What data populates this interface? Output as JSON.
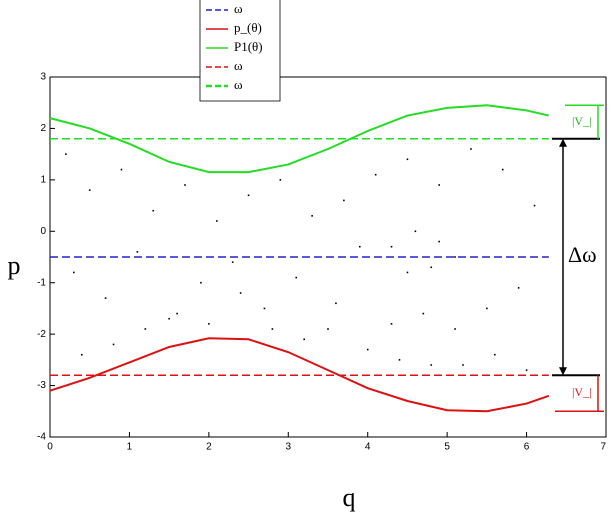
{
  "chart_data": {
    "type": "scatter",
    "xlabel": "q",
    "ylabel": "p",
    "xlim": [
      0,
      7
    ],
    "ylim": [
      -4,
      3
    ],
    "xticks": [
      0,
      1,
      2,
      3,
      4,
      5,
      6,
      7
    ],
    "yticks": [
      -4,
      -3,
      -2,
      -1,
      0,
      1,
      2,
      3
    ],
    "points": {
      "color": "#000000",
      "x": [
        0.2,
        0.5,
        0.9,
        1.3,
        1.7,
        2.1,
        2.5,
        2.9,
        3.3,
        3.7,
        4.1,
        4.5,
        4.9,
        5.3,
        5.7,
        6.1,
        0.3,
        0.7,
        1.1,
        1.5,
        1.9,
        2.3,
        2.7,
        3.1,
        3.5,
        3.9,
        4.3,
        4.7,
        5.1,
        5.5,
        5.9,
        0.4,
        0.8,
        1.2,
        1.6,
        2.0,
        2.4,
        2.8,
        3.2,
        3.6,
        4.0,
        4.4,
        4.8,
        5.2,
        5.6,
        6.0,
        4.3,
        4.6,
        4.9,
        5.1,
        4.5,
        4.8
      ],
      "y": [
        1.5,
        0.8,
        1.2,
        0.4,
        0.9,
        0.2,
        0.7,
        1.0,
        0.3,
        0.6,
        1.1,
        1.4,
        0.9,
        1.6,
        1.2,
        0.5,
        -0.8,
        -1.3,
        -0.4,
        -1.7,
        -1.0,
        -0.6,
        -1.5,
        -0.9,
        -1.9,
        -0.3,
        -1.8,
        -1.6,
        -1.9,
        -1.5,
        -1.1,
        -2.4,
        -2.2,
        -1.9,
        -1.6,
        -1.8,
        -1.2,
        -1.9,
        -2.1,
        -1.4,
        -2.3,
        -2.5,
        -2.6,
        -2.6,
        -2.4,
        -2.7,
        -0.3,
        0.0,
        -0.2,
        -0.5,
        -0.8,
        -0.7
      ]
    },
    "x": [
      0,
      0.5,
      1,
      1.5,
      2,
      2.5,
      3,
      3.5,
      4,
      4.5,
      5,
      5.5,
      6,
      6.28
    ],
    "series": [
      {
        "name": "ω",
        "color": "#2222cc",
        "style": "dashed",
        "level": -0.5
      },
      {
        "name": "p_(θ)",
        "color": "#dd1111",
        "style": "solid",
        "values": [
          -3.1,
          -2.85,
          -2.55,
          -2.25,
          -2.08,
          -2.1,
          -2.35,
          -2.7,
          -3.05,
          -3.3,
          -3.48,
          -3.5,
          -3.35,
          -3.2
        ]
      },
      {
        "name": "P1(θ)",
        "color": "#22dd22",
        "style": "solid",
        "values": [
          2.2,
          2.0,
          1.7,
          1.35,
          1.15,
          1.15,
          1.3,
          1.6,
          1.95,
          2.25,
          2.4,
          2.45,
          2.35,
          2.25
        ]
      },
      {
        "name": "ω",
        "color": "#dd1111",
        "style": "dashed",
        "level": -2.8
      },
      {
        "name": "ω",
        "color": "#22dd22",
        "style": "dashed",
        "level": 1.8
      }
    ],
    "annotations": [
      "|V_|",
      "Δω",
      "|V_|"
    ]
  }
}
